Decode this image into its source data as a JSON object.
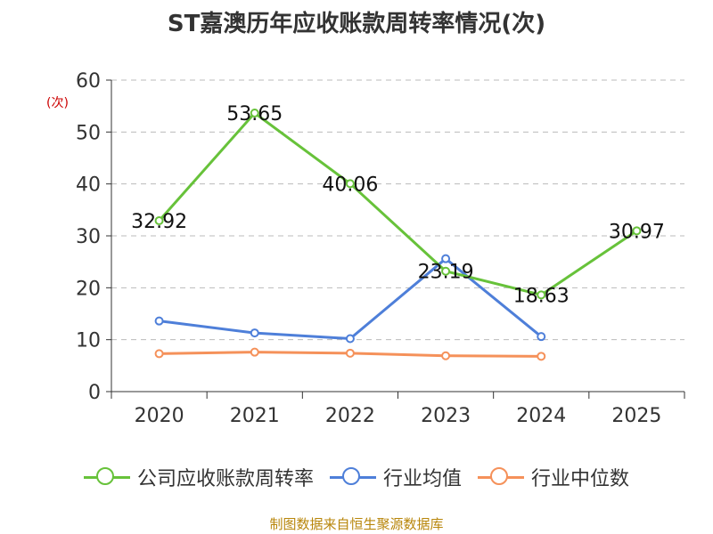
{
  "chart_data": {
    "type": "line",
    "title": "ST嘉澳历年应收账款周转率情况(次)",
    "ylabel": "(次)",
    "xlabel": "",
    "categories": [
      "2020",
      "2021",
      "2022",
      "2023",
      "2024",
      "2025"
    ],
    "ylim": [
      0,
      60
    ],
    "yticks": [
      0,
      10,
      20,
      30,
      40,
      50,
      60
    ],
    "grid": true,
    "legend_position": "bottom",
    "series": [
      {
        "name": "公司应收账款周转率",
        "color": "#67c23a",
        "values": [
          32.92,
          53.65,
          40.06,
          23.19,
          18.63,
          30.97
        ],
        "labels": [
          "32.92",
          "53.65",
          "40.06",
          "23.19",
          "18.63",
          "30.97"
        ]
      },
      {
        "name": "行业均值",
        "color": "#4e7fd9",
        "values": [
          13.6,
          11.3,
          10.2,
          25.6,
          10.6,
          null
        ]
      },
      {
        "name": "行业中位数",
        "color": "#f5915a",
        "values": [
          7.3,
          7.6,
          7.4,
          6.9,
          6.8,
          null
        ]
      }
    ]
  },
  "legend": {
    "items": [
      {
        "label": "公司应收账款周转率",
        "color": "#67c23a"
      },
      {
        "label": "行业均值",
        "color": "#4e7fd9"
      },
      {
        "label": "行业中位数",
        "color": "#f5915a"
      }
    ]
  },
  "source": "制图数据来自恒生聚源数据库"
}
